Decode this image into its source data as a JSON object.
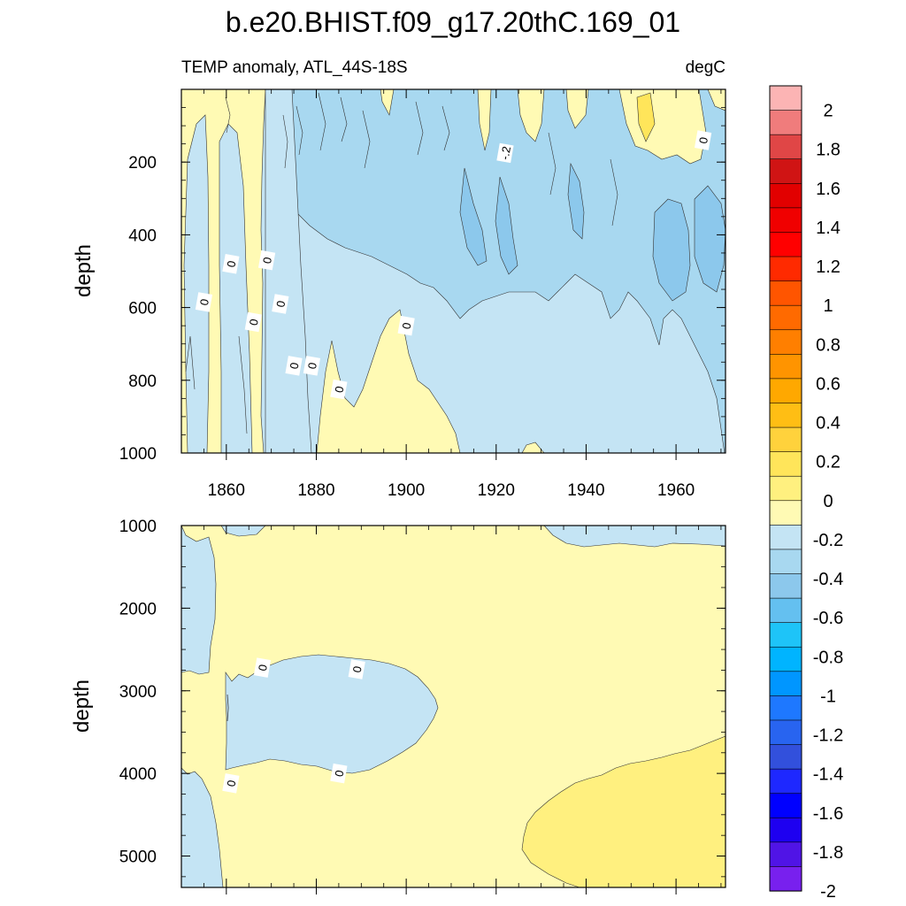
{
  "chart_data": {
    "type": "heatmap",
    "title": "b.e20.BHIST.f09_g17.20thC.169_01",
    "left_subtitle": "TEMP anomaly, ATL_44S-18S",
    "right_subtitle": "degC",
    "x_ticks": [
      "1860",
      "1880",
      "1900",
      "1920",
      "1940",
      "1960"
    ],
    "xlim": [
      1850,
      1971
    ],
    "panels": [
      {
        "name": "upper",
        "ylabel": "depth",
        "ylim": [
          0,
          1000
        ],
        "y_ticks": [
          "200",
          "400",
          "600",
          "800",
          "1000"
        ],
        "contour_labels": [
          {
            "text": "0",
            "x": 1855,
            "y": 585
          },
          {
            "text": "0",
            "x": 1861,
            "y": 480
          },
          {
            "text": "0",
            "x": 1866,
            "y": 640
          },
          {
            "text": "0",
            "x": 1869,
            "y": 470
          },
          {
            "text": "0",
            "x": 1872,
            "y": 590
          },
          {
            "text": "0",
            "x": 1875,
            "y": 760
          },
          {
            "text": "0",
            "x": 1879,
            "y": 760
          },
          {
            "text": "0",
            "x": 1885,
            "y": 825
          },
          {
            "text": "0",
            "x": 1900,
            "y": 650
          },
          {
            "text": "-.2",
            "x": 1922,
            "y": 175
          },
          {
            "text": "0",
            "x": 1966,
            "y": 140
          }
        ]
      },
      {
        "name": "lower",
        "ylabel": "depth",
        "ylim": [
          1000,
          5380
        ],
        "y_ticks": [
          "1000",
          "2000",
          "3000",
          "4000",
          "5000"
        ],
        "contour_labels": [
          {
            "text": "0",
            "x": 1868,
            "y": 2720
          },
          {
            "text": "0",
            "x": 1889,
            "y": 2740
          },
          {
            "text": "0",
            "x": 1861,
            "y": 4120
          },
          {
            "text": "0",
            "x": 1885,
            "y": 4000
          }
        ]
      }
    ],
    "colorbar": {
      "levels": [
        "2",
        "1.8",
        "1.6",
        "1.4",
        "1.2",
        "1",
        "0.8",
        "0.6",
        "0.4",
        "0.2",
        "0",
        "-0.2",
        "-0.4",
        "-0.6",
        "-0.8",
        "-1",
        "-1.2",
        "-1.4",
        "-1.6",
        "-1.8",
        "-2"
      ],
      "colors": [
        "#fcb4b4",
        "#f07c7c",
        "#e04646",
        "#d01414",
        "#e20000",
        "#f00000",
        "#ff0000",
        "#ff2a00",
        "#ff5500",
        "#ff6a00",
        "#ff7f00",
        "#ff9400",
        "#ffa800",
        "#ffbe14",
        "#ffd23c",
        "#ffe55a",
        "#fff07f",
        "#fffab4",
        "#c4e4f4",
        "#a8d8f0",
        "#8cc8ec",
        "#64c0f0",
        "#1ec4f8",
        "#00b4ff",
        "#0096ff",
        "#1e78ff",
        "#2864f0",
        "#3250dc",
        "#1e28ff",
        "#0000ff",
        "#1e00f0",
        "#5014e6",
        "#7820ee"
      ]
    }
  }
}
